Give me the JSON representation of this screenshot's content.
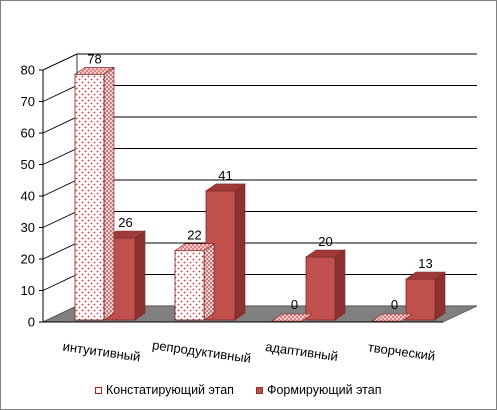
{
  "chart_data": {
    "type": "bar",
    "categories": [
      "интуитивный",
      "репродуктивный",
      "адаптивный",
      "творческий"
    ],
    "series": [
      {
        "name": "Констатирующий этап",
        "values": [
          78,
          22,
          0,
          0
        ],
        "color": "#ffffff",
        "pattern": "red-dots"
      },
      {
        "name": "Формирующий  этап",
        "values": [
          26,
          41,
          20,
          13
        ],
        "color": "#c0504d"
      }
    ],
    "ylim": [
      0,
      80
    ],
    "yticks": [
      0,
      10,
      20,
      30,
      40,
      50,
      60,
      70,
      80
    ],
    "grid": true,
    "legend": "bottom",
    "three_d": true
  }
}
